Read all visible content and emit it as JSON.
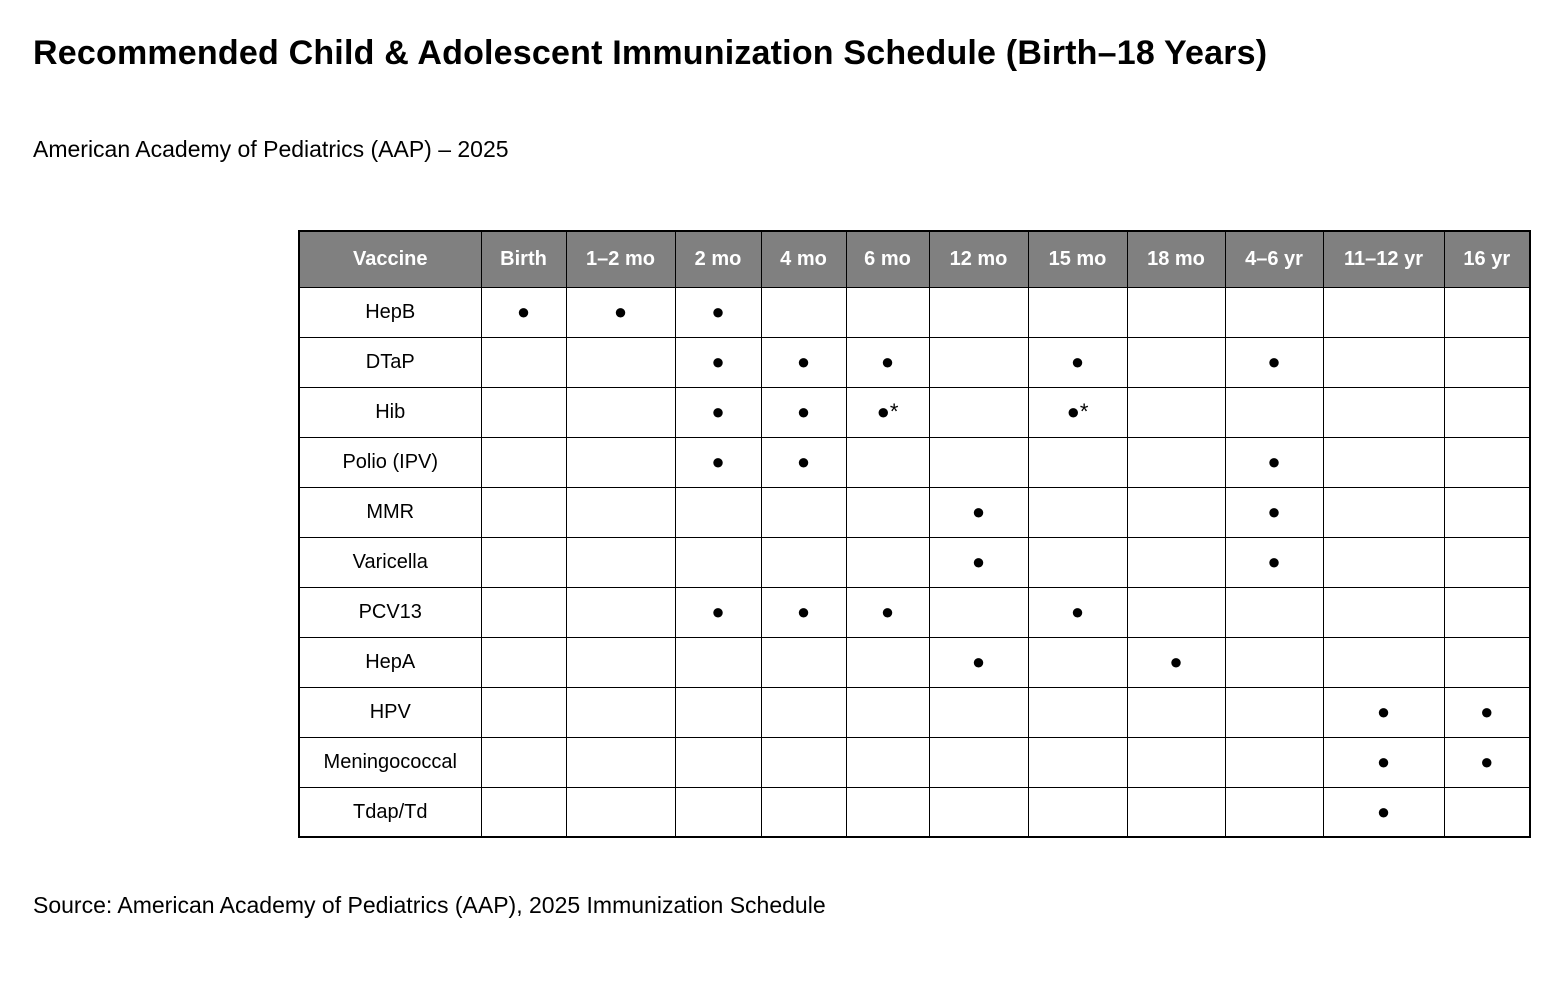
{
  "page": {
    "title": "Recommended Child & Adolescent Immunization Schedule (Birth–18 Years)",
    "subtitle": "American Academy of Pediatrics (AAP) – 2025",
    "source": "Source: American Academy of Pediatrics (AAP), 2025 Immunization Schedule"
  },
  "colors": {
    "header_background": "#808080",
    "header_text": "#ffffff",
    "border": "#000000",
    "dot": "#000000",
    "page_background": "#ffffff",
    "body_text": "#000000"
  },
  "icons": {
    "dose_marker": "●",
    "dose_marker_with_footnote": "●*"
  },
  "table": {
    "columns": [
      "Vaccine",
      "Birth",
      "1–2 mo",
      "2 mo",
      "4 mo",
      "6 mo",
      "12 mo",
      "15 mo",
      "18 mo",
      "4–6 yr",
      "11–12 yr",
      "16 yr"
    ],
    "rows": [
      {
        "vaccine": "HepB",
        "doses": [
          "●",
          "●",
          "●",
          "",
          "",
          "",
          "",
          "",
          "",
          "",
          ""
        ]
      },
      {
        "vaccine": "DTaP",
        "doses": [
          "",
          "",
          "●",
          "●",
          "●",
          "",
          "●",
          "",
          "●",
          "",
          ""
        ]
      },
      {
        "vaccine": "Hib",
        "doses": [
          "",
          "",
          "●",
          "●",
          "●*",
          "",
          "●*",
          "",
          "",
          "",
          ""
        ]
      },
      {
        "vaccine": "Polio (IPV)",
        "doses": [
          "",
          "",
          "●",
          "●",
          "",
          "",
          "",
          "",
          "●",
          "",
          ""
        ]
      },
      {
        "vaccine": "MMR",
        "doses": [
          "",
          "",
          "",
          "",
          "",
          "●",
          "",
          "",
          "●",
          "",
          ""
        ]
      },
      {
        "vaccine": "Varicella",
        "doses": [
          "",
          "",
          "",
          "",
          "",
          "●",
          "",
          "",
          "●",
          "",
          ""
        ]
      },
      {
        "vaccine": "PCV13",
        "doses": [
          "",
          "",
          "●",
          "●",
          "●",
          "",
          "●",
          "",
          "",
          "",
          ""
        ]
      },
      {
        "vaccine": "HepA",
        "doses": [
          "",
          "",
          "",
          "",
          "",
          "●",
          "",
          "●",
          "",
          "",
          ""
        ]
      },
      {
        "vaccine": "HPV",
        "doses": [
          "",
          "",
          "",
          "",
          "",
          "",
          "",
          "",
          "",
          "●",
          "●"
        ]
      },
      {
        "vaccine": "Meningococcal",
        "doses": [
          "",
          "",
          "",
          "",
          "",
          "",
          "",
          "",
          "",
          "●",
          "●"
        ]
      },
      {
        "vaccine": "Tdap/Td",
        "doses": [
          "",
          "",
          "",
          "",
          "",
          "",
          "",
          "",
          "",
          "●",
          ""
        ]
      }
    ]
  }
}
